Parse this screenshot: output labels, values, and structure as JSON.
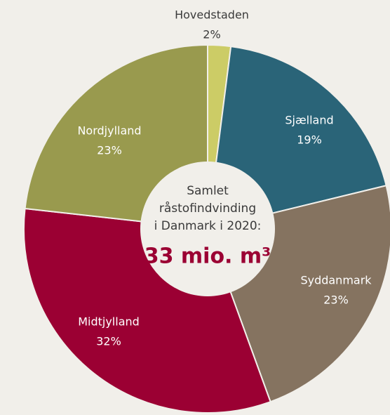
{
  "chart_data": {
    "type": "donut",
    "categories": [
      "Hovedstaden",
      "Sjælland",
      "Syddanmark",
      "Midtjylland",
      "Nordjylland"
    ],
    "values": [
      2,
      19,
      23,
      32,
      23
    ],
    "value_labels": [
      "2%",
      "19%",
      "23%",
      "32%",
      "23%"
    ],
    "colors": [
      "#cccc66",
      "#2a6478",
      "#857360",
      "#9b0033",
      "#999a4e"
    ],
    "center_text": [
      "Samlet",
      "råstofindvinding",
      "i Danmark i 2020:"
    ],
    "center_total": "33 mio. m³"
  }
}
